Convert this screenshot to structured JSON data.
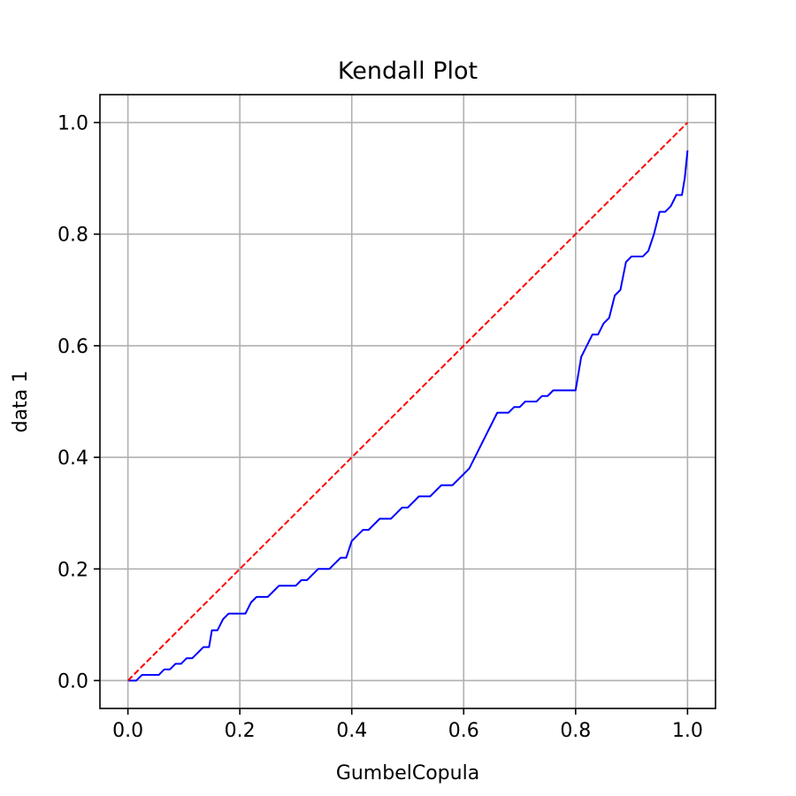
{
  "chart_data": {
    "type": "line",
    "title": "Kendall Plot",
    "xlabel": "GumbelCopula",
    "ylabel": "data 1",
    "xlim": [
      -0.05,
      1.05
    ],
    "ylim": [
      -0.05,
      1.05
    ],
    "xticks": [
      0.0,
      0.2,
      0.4,
      0.6,
      0.8,
      1.0
    ],
    "yticks": [
      0.0,
      0.2,
      0.4,
      0.6,
      0.8,
      1.0
    ],
    "xtick_labels": [
      "0.0",
      "0.2",
      "0.4",
      "0.6",
      "0.8",
      "1.0"
    ],
    "ytick_labels": [
      "0.0",
      "0.2",
      "0.4",
      "0.6",
      "0.8",
      "1.0"
    ],
    "grid": true,
    "series": [
      {
        "color": "#0000ff",
        "style": "solid",
        "x": [
          0.0,
          0.015,
          0.025,
          0.055,
          0.065,
          0.075,
          0.085,
          0.095,
          0.105,
          0.115,
          0.125,
          0.135,
          0.145,
          0.15,
          0.16,
          0.17,
          0.18,
          0.19,
          0.2,
          0.21,
          0.215,
          0.22,
          0.23,
          0.24,
          0.25,
          0.26,
          0.27,
          0.28,
          0.29,
          0.3,
          0.31,
          0.32,
          0.33,
          0.34,
          0.35,
          0.36,
          0.37,
          0.38,
          0.39,
          0.4,
          0.41,
          0.42,
          0.43,
          0.44,
          0.45,
          0.46,
          0.47,
          0.48,
          0.49,
          0.5,
          0.51,
          0.52,
          0.53,
          0.54,
          0.55,
          0.56,
          0.57,
          0.58,
          0.59,
          0.6,
          0.61,
          0.62,
          0.63,
          0.64,
          0.65,
          0.66,
          0.67,
          0.68,
          0.69,
          0.7,
          0.71,
          0.72,
          0.73,
          0.74,
          0.75,
          0.76,
          0.77,
          0.78,
          0.79,
          0.8,
          0.81,
          0.82,
          0.83,
          0.84,
          0.85,
          0.86,
          0.87,
          0.88,
          0.89,
          0.9,
          0.91,
          0.92,
          0.93,
          0.94,
          0.95,
          0.96,
          0.97,
          0.98,
          0.99,
          0.995,
          1.0
        ],
        "y": [
          0.0,
          0.0,
          0.01,
          0.01,
          0.02,
          0.02,
          0.03,
          0.03,
          0.04,
          0.04,
          0.05,
          0.06,
          0.06,
          0.09,
          0.09,
          0.11,
          0.12,
          0.12,
          0.12,
          0.12,
          0.13,
          0.14,
          0.15,
          0.15,
          0.15,
          0.16,
          0.17,
          0.17,
          0.17,
          0.17,
          0.18,
          0.18,
          0.19,
          0.2,
          0.2,
          0.2,
          0.21,
          0.22,
          0.22,
          0.25,
          0.26,
          0.27,
          0.27,
          0.28,
          0.29,
          0.29,
          0.29,
          0.3,
          0.31,
          0.31,
          0.32,
          0.33,
          0.33,
          0.33,
          0.34,
          0.35,
          0.35,
          0.35,
          0.36,
          0.37,
          0.38,
          0.4,
          0.42,
          0.44,
          0.46,
          0.48,
          0.48,
          0.48,
          0.49,
          0.49,
          0.5,
          0.5,
          0.5,
          0.51,
          0.51,
          0.52,
          0.52,
          0.52,
          0.52,
          0.52,
          0.58,
          0.6,
          0.62,
          0.62,
          0.64,
          0.65,
          0.69,
          0.7,
          0.75,
          0.76,
          0.76,
          0.76,
          0.77,
          0.8,
          0.84,
          0.84,
          0.85,
          0.87,
          0.87,
          0.9,
          0.95
        ]
      },
      {
        "color": "#ff0000",
        "style": "dashed",
        "x": [
          0.0,
          1.0
        ],
        "y": [
          0.0,
          1.0
        ]
      }
    ]
  }
}
